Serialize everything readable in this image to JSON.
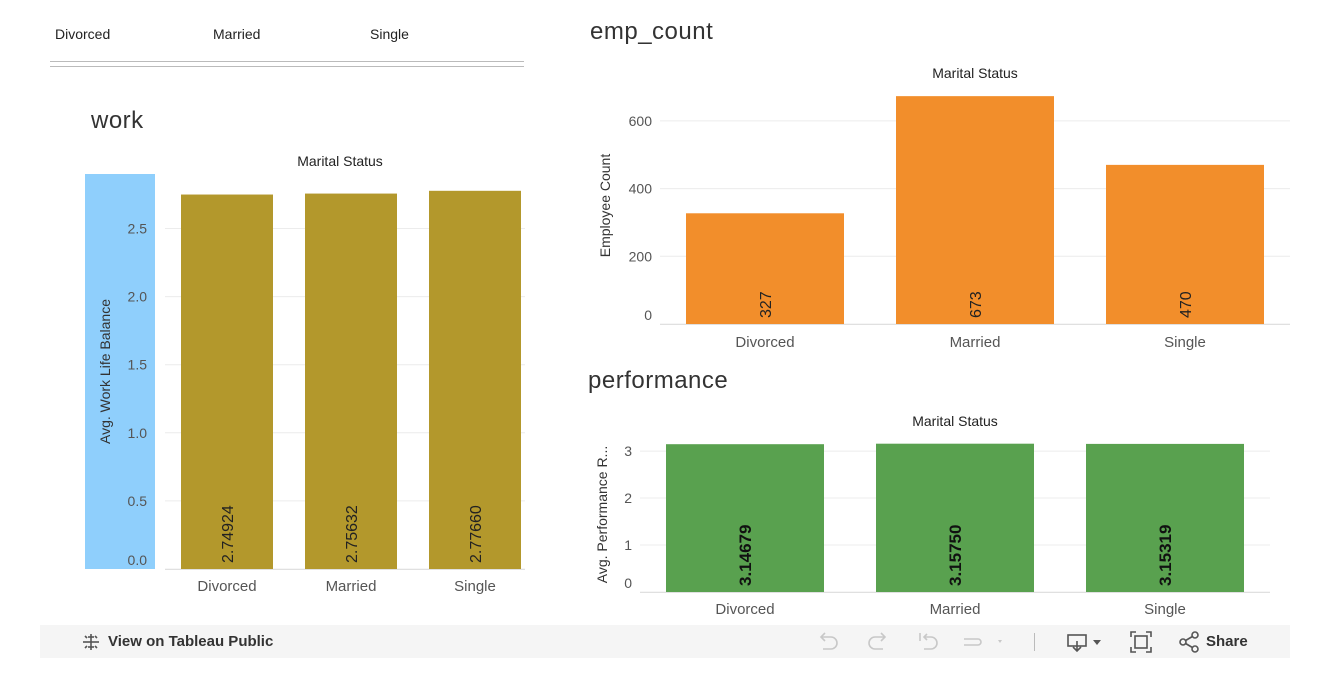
{
  "legend": {
    "items": [
      "Divorced",
      "Married",
      "Single"
    ]
  },
  "sheets": {
    "work": {
      "title": "work",
      "header": "Marital Status"
    },
    "emp": {
      "title": "emp_count",
      "header": "Marital Status"
    },
    "perf": {
      "title": "performance",
      "header": "Marital Status"
    }
  },
  "toolbar": {
    "view_label": "View on Tableau Public",
    "share_label": "Share"
  },
  "chart_data": [
    {
      "id": "work",
      "type": "bar",
      "title": "",
      "header": "Marital Status",
      "categories": [
        "Divorced",
        "Married",
        "Single"
      ],
      "values": [
        2.74924,
        2.75632,
        2.7766
      ],
      "labels": [
        "2.74924",
        "2.75632",
        "2.77660"
      ],
      "ylabel": "Avg. Work Life Balance",
      "yticks": [
        "0.0",
        "0.5",
        "1.0",
        "1.5",
        "2.0",
        "2.5"
      ],
      "ylim": [
        0,
        2.9
      ],
      "color": "#b3982c",
      "grid": true
    },
    {
      "id": "emp",
      "type": "bar",
      "title": "",
      "header": "Marital Status",
      "categories": [
        "Divorced",
        "Married",
        "Single"
      ],
      "values": [
        327,
        673,
        470
      ],
      "labels": [
        "327",
        "673",
        "470"
      ],
      "ylabel": "Employee Count",
      "yticks": [
        "0",
        "200",
        "400",
        "600"
      ],
      "ylim": [
        0,
        700
      ],
      "color": "#f28e2b",
      "grid": true
    },
    {
      "id": "perf",
      "type": "bar",
      "title": "",
      "header": "Marital Status",
      "categories": [
        "Divorced",
        "Married",
        "Single"
      ],
      "values": [
        3.14679,
        3.1575,
        3.15319
      ],
      "labels": [
        "3.14679",
        "3.15750",
        "3.15319"
      ],
      "ylabel": "Avg. Performance R...",
      "yticks": [
        "0",
        "1",
        "2",
        "3"
      ],
      "ylim": [
        0,
        3.3
      ],
      "color": "#59a14f",
      "grid": true
    }
  ]
}
